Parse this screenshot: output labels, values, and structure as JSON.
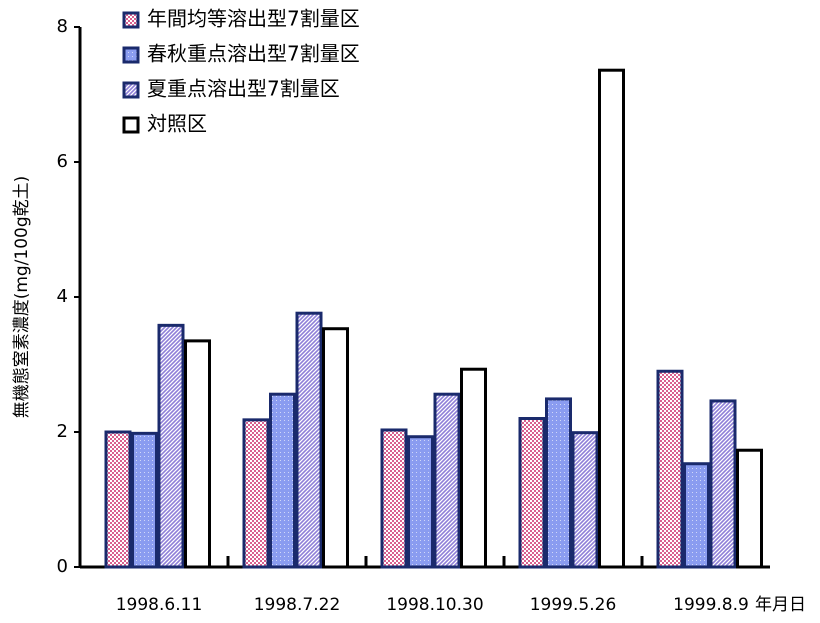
{
  "chart_data": {
    "type": "bar",
    "y_label": "無機態窒素濃度(mg/100g乾土)",
    "x_label": "年月日",
    "categories": [
      "1998.6.11",
      "1998.7.22",
      "1998.10.30",
      "1999.5.26",
      "1999.8.9"
    ],
    "series": [
      {
        "name": "年間均等溶出型7割量区",
        "color": "#d9608f",
        "edgecolor": "#1a2a6c",
        "pattern": "dots",
        "values": [
          2.0,
          2.18,
          2.03,
          2.2,
          2.9
        ]
      },
      {
        "name": "春秋重点溶出型7割量区",
        "color": "#8a9cf0",
        "edgecolor": "#1a2a6c",
        "pattern": "fine",
        "values": [
          1.98,
          2.56,
          1.93,
          2.49,
          1.53
        ]
      },
      {
        "name": "夏重点溶出型7割量区",
        "color": "#8f7fd8",
        "edgecolor": "#1a2a6c",
        "pattern": "hatch",
        "values": [
          3.58,
          3.76,
          2.56,
          1.99,
          2.46
        ]
      },
      {
        "name": "対照区",
        "color": "#ffffff",
        "edgecolor": "#000000",
        "pattern": "solid",
        "values": [
          3.35,
          3.53,
          2.93,
          7.36,
          1.73
        ]
      }
    ],
    "ylim": [
      0,
      8
    ],
    "yticks": [
      0,
      2,
      4,
      6,
      8
    ],
    "grid": false,
    "legend": "upper-left"
  }
}
